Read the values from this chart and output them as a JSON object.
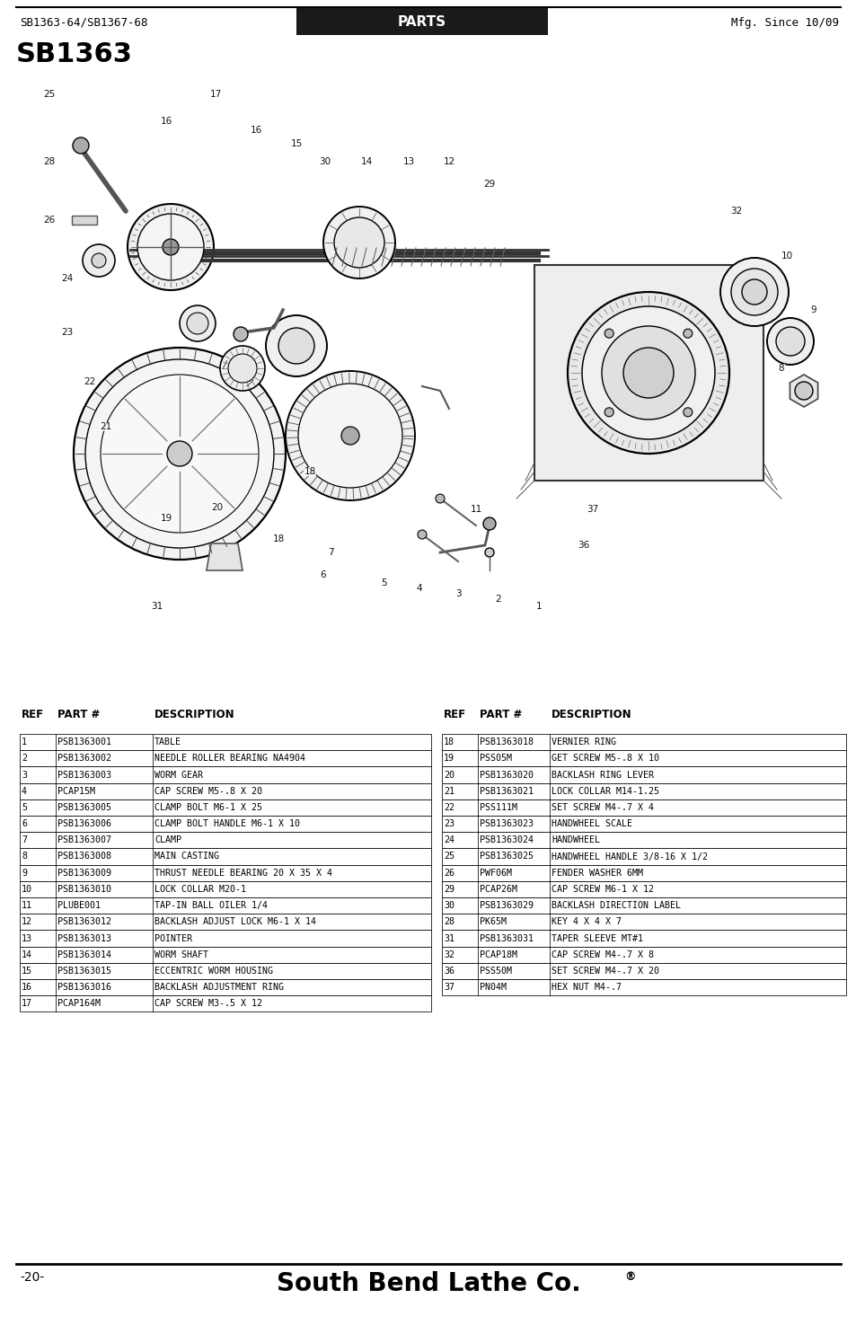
{
  "header_left": "SB1363-64/SB1367-68",
  "header_center": "PARTS",
  "header_right": "Mfg. Since 10/09",
  "title": "SB1363",
  "footer_page": "-20-",
  "footer_company": "South Bend Lathe Co.",
  "table_left_rows": [
    [
      "1",
      "PSB1363001",
      "TABLE"
    ],
    [
      "2",
      "PSB1363002",
      "NEEDLE ROLLER BEARING NA4904"
    ],
    [
      "3",
      "PSB1363003",
      "WORM GEAR"
    ],
    [
      "4",
      "PCAP15M",
      "CAP SCREW M5-.8 X 20"
    ],
    [
      "5",
      "PSB1363005",
      "CLAMP BOLT M6-1 X 25"
    ],
    [
      "6",
      "PSB1363006",
      "CLAMP BOLT HANDLE M6-1 X 10"
    ],
    [
      "7",
      "PSB1363007",
      "CLAMP"
    ],
    [
      "8",
      "PSB1363008",
      "MAIN CASTING"
    ],
    [
      "9",
      "PSB1363009",
      "THRUST NEEDLE BEARING 20 X 35 X 4"
    ],
    [
      "10",
      "PSB1363010",
      "LOCK COLLAR M20-1"
    ],
    [
      "11",
      "PLUBE001",
      "TAP-IN BALL OILER 1/4"
    ],
    [
      "12",
      "PSB1363012",
      "BACKLASH ADJUST LOCK M6-1 X 14"
    ],
    [
      "13",
      "PSB1363013",
      "POINTER"
    ],
    [
      "14",
      "PSB1363014",
      "WORM SHAFT"
    ],
    [
      "15",
      "PSB1363015",
      "ECCENTRIC WORM HOUSING"
    ],
    [
      "16",
      "PSB1363016",
      "BACKLASH ADJUSTMENT RING"
    ],
    [
      "17",
      "PCAP164M",
      "CAP SCREW M3-.5 X 12"
    ]
  ],
  "table_right_rows": [
    [
      "18",
      "PSB1363018",
      "VERNIER RING"
    ],
    [
      "19",
      "PSS05M",
      "GET SCREW M5-.8 X 10"
    ],
    [
      "20",
      "PSB1363020",
      "BACKLASH RING LEVER"
    ],
    [
      "21",
      "PSB1363021",
      "LOCK COLLAR M14-1.25"
    ],
    [
      "22",
      "PSS111M",
      "SET SCREW M4-.7 X 4"
    ],
    [
      "23",
      "PSB1363023",
      "HANDWHEEL SCALE"
    ],
    [
      "24",
      "PSB1363024",
      "HANDWHEEL"
    ],
    [
      "25",
      "PSB1363025",
      "HANDWHEEL HANDLE 3/8-16 X 1/2"
    ],
    [
      "26",
      "PWF06M",
      "FENDER WASHER 6MM"
    ],
    [
      "29",
      "PCAP26M",
      "CAP SCREW M6-1 X 12"
    ],
    [
      "30",
      "PSB1363029",
      "BACKLASH DIRECTION LABEL"
    ],
    [
      "28",
      "PK65M",
      "KEY 4 X 4 X 7"
    ],
    [
      "31",
      "PSB1363031",
      "TAPER SLEEVE MT#1"
    ],
    [
      "32",
      "PCAP18M",
      "CAP SCREW M4-.7 X 8"
    ],
    [
      "36",
      "PSS50M",
      "SET SCREW M4-.7 X 20"
    ],
    [
      "37",
      "PN04M",
      "HEX NUT M4-.7"
    ]
  ],
  "bg_color": "#ffffff",
  "header_bg": "#1a1a1a",
  "header_text_color": "#ffffff",
  "border_color": "#000000",
  "text_color": "#000000",
  "table_font_size": 7.2,
  "header_font_size": 8.5,
  "title_font_size": 22,
  "footer_font_size": 20
}
